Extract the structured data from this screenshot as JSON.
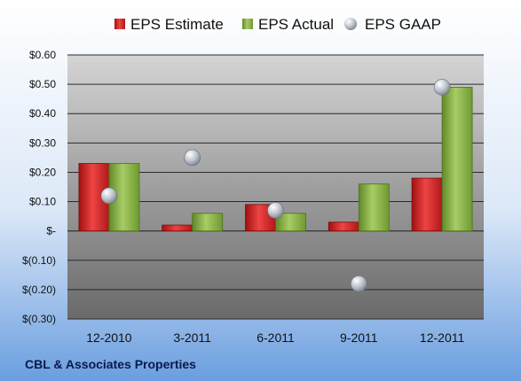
{
  "chart_data": {
    "type": "bar",
    "categories": [
      "12-2010",
      "3-2011",
      "6-2011",
      "9-2011",
      "12-2011"
    ],
    "series": [
      {
        "name": "EPS Estimate",
        "type": "bar",
        "color": "#d42a2a",
        "values": [
          0.23,
          0.02,
          0.09,
          0.03,
          0.18
        ]
      },
      {
        "name": "EPS Actual",
        "type": "bar",
        "color": "#8cb04a",
        "values": [
          0.23,
          0.06,
          0.06,
          0.16,
          0.49
        ]
      },
      {
        "name": "EPS GAAP",
        "type": "scatter",
        "color": "#b0b8c4",
        "values": [
          0.12,
          0.25,
          0.07,
          -0.18,
          0.49
        ]
      }
    ],
    "ylim": [
      -0.3,
      0.6
    ],
    "yticks": [
      0.6,
      0.5,
      0.4,
      0.3,
      0.2,
      0.1,
      0.0,
      -0.1,
      -0.2,
      -0.3
    ],
    "ytick_labels": [
      "$0.60",
      "$0.50",
      "$0.40",
      "$0.30",
      "$0.20",
      "$0.10",
      "$-",
      "$(0.10)",
      "$(0.20)",
      "$(0.30)"
    ],
    "legend_position": "top",
    "grid": true
  },
  "company": "CBL & Associates Properties",
  "colors": {
    "background_top": "#ffffff",
    "background_bottom": "#6a9edf",
    "plot_top": "#c8c8c8",
    "plot_bottom": "#6e6e6e"
  }
}
